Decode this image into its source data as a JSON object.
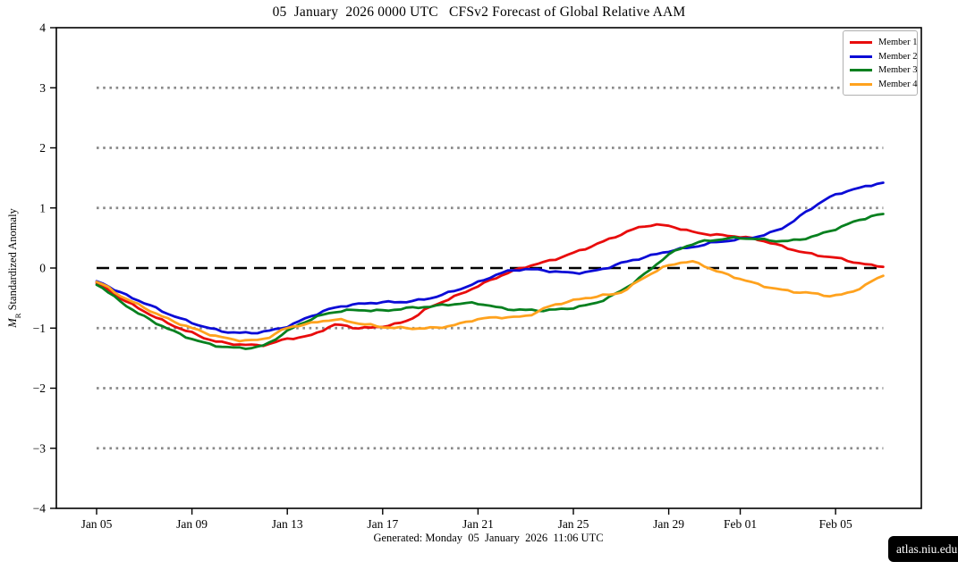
{
  "title": "05  January  2026 0000 UTC   CFSv2 Forecast of Global Relative AAM",
  "footer": "Generated: Monday  05  January  2026  11:06 UTC",
  "watermark": "atlas.niu.edu",
  "chart_data": {
    "type": "line",
    "title": "05 January 2026 0000 UTC CFSv2 Forecast of Global Relative AAM",
    "xlabel": "",
    "ylabel": "M_R Standardized Anomaly",
    "ylabel_parts": {
      "var": "M",
      "sub": "R",
      "rest": " Standardized Anomaly"
    },
    "ylim": [
      -4,
      4
    ],
    "grid": "horizontal dotted at ±1, ±2, ±3; bold dashed zero line",
    "legend_position": "upper right",
    "y_ticks": [
      {
        "label": "4",
        "value": 4
      },
      {
        "label": "3",
        "value": 3
      },
      {
        "label": "2",
        "value": 2
      },
      {
        "label": "1",
        "value": 1
      },
      {
        "label": "0",
        "value": 0
      },
      {
        "label": "−1",
        "value": -1
      },
      {
        "label": "−2",
        "value": -2
      },
      {
        "label": "−3",
        "value": -3
      },
      {
        "label": "−4",
        "value": -4
      }
    ],
    "x_ticks": [
      {
        "label": "Jan 05",
        "day": 0
      },
      {
        "label": "Jan 09",
        "day": 4
      },
      {
        "label": "Jan 13",
        "day": 8
      },
      {
        "label": "Jan 17",
        "day": 12
      },
      {
        "label": "Jan 21",
        "day": 16
      },
      {
        "label": "Jan 25",
        "day": 20
      },
      {
        "label": "Jan 29",
        "day": 24
      },
      {
        "label": "Feb 01",
        "day": 27
      },
      {
        "label": "Feb 05",
        "day": 31
      }
    ],
    "reference_lines": {
      "zero": {
        "value": 0,
        "color": "#000000",
        "style": "dashed"
      },
      "dotted_values": [
        3,
        2,
        1,
        -1,
        -2,
        -3
      ],
      "dotted_color": "#8a8a8a"
    },
    "x_dates": [
      "Jan 05",
      "Jan 06",
      "Jan 07",
      "Jan 08",
      "Jan 09",
      "Jan 10",
      "Jan 11",
      "Jan 12",
      "Jan 13",
      "Jan 14",
      "Jan 15",
      "Jan 16",
      "Jan 17",
      "Jan 18",
      "Jan 19",
      "Jan 20",
      "Jan 21",
      "Jan 22",
      "Jan 23",
      "Jan 24",
      "Jan 25",
      "Jan 26",
      "Jan 27",
      "Jan 28",
      "Jan 29",
      "Jan 30",
      "Jan 31",
      "Feb 01",
      "Feb 02",
      "Feb 03",
      "Feb 04",
      "Feb 05",
      "Feb 06",
      "Feb 07"
    ],
    "series": [
      {
        "name": "Member 1",
        "color": "#e80c0c",
        "values": [
          -0.25,
          -0.5,
          -0.72,
          -0.92,
          -1.08,
          -1.22,
          -1.27,
          -1.28,
          -1.18,
          -1.12,
          -0.95,
          -1.0,
          -0.97,
          -0.88,
          -0.65,
          -0.48,
          -0.3,
          -0.12,
          0.02,
          0.12,
          0.25,
          0.4,
          0.56,
          0.7,
          0.7,
          0.6,
          0.55,
          0.52,
          0.45,
          0.33,
          0.23,
          0.17,
          0.08,
          0.02
        ]
      },
      {
        "name": "Member 2",
        "color": "#0b0bd6",
        "values": [
          -0.22,
          -0.41,
          -0.58,
          -0.76,
          -0.91,
          -1.03,
          -1.08,
          -1.06,
          -0.97,
          -0.8,
          -0.66,
          -0.6,
          -0.57,
          -0.56,
          -0.5,
          -0.38,
          -0.24,
          -0.08,
          -0.02,
          -0.05,
          -0.08,
          -0.04,
          0.08,
          0.18,
          0.28,
          0.35,
          0.43,
          0.48,
          0.55,
          0.72,
          1.0,
          1.22,
          1.33,
          1.42
        ]
      },
      {
        "name": "Member 3",
        "color": "#07801f",
        "values": [
          -0.28,
          -0.56,
          -0.81,
          -1.01,
          -1.18,
          -1.29,
          -1.33,
          -1.29,
          -1.05,
          -0.85,
          -0.73,
          -0.7,
          -0.71,
          -0.67,
          -0.64,
          -0.6,
          -0.59,
          -0.67,
          -0.7,
          -0.7,
          -0.66,
          -0.57,
          -0.38,
          -0.1,
          0.22,
          0.4,
          0.47,
          0.5,
          0.47,
          0.45,
          0.52,
          0.65,
          0.8,
          0.9
        ]
      },
      {
        "name": "Member 4",
        "color": "#ffa21e",
        "values": [
          -0.23,
          -0.46,
          -0.66,
          -0.85,
          -1.0,
          -1.13,
          -1.2,
          -1.18,
          -1.0,
          -0.92,
          -0.86,
          -0.92,
          -0.98,
          -1.0,
          -1.0,
          -0.95,
          -0.85,
          -0.82,
          -0.8,
          -0.64,
          -0.54,
          -0.47,
          -0.4,
          -0.15,
          0.04,
          0.1,
          -0.05,
          -0.18,
          -0.3,
          -0.38,
          -0.42,
          -0.46,
          -0.34,
          -0.13
        ]
      }
    ]
  }
}
